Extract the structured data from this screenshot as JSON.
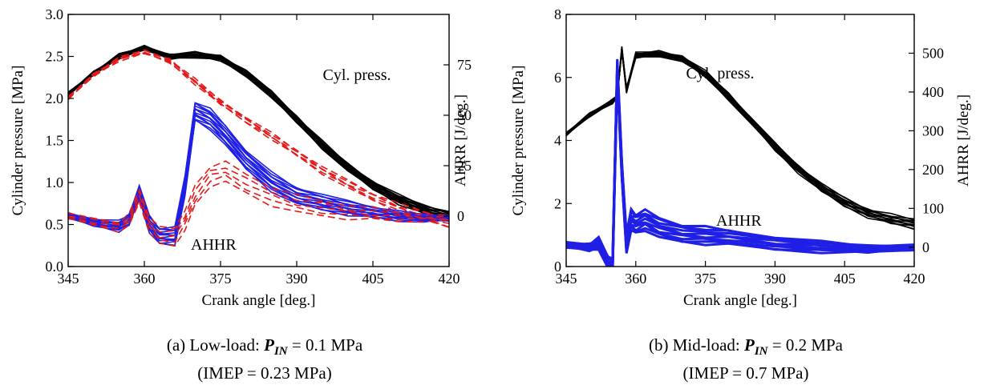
{
  "charts": [
    {
      "id": "a",
      "caption": {
        "line1_prefix": "(a) Low-load: ",
        "pin_symbol": "P",
        "pin_sub": "IN",
        "line1_suffix": " = 0.1 MPa",
        "line2": "(IMEP = 0.23 MPa)"
      },
      "ylabel_left": "Cylinder pressure [MPa]",
      "ylabel_right": "AHRR [J/deg.]",
      "xlabel": "Crank angle [deg.]",
      "annotations": {
        "pressure": "Cyl. press.",
        "ahrr": "AHHR"
      },
      "colors": {
        "black": "#000000",
        "blue": "#1f1fe6",
        "red": "#e41a1a"
      }
    },
    {
      "id": "b",
      "caption": {
        "line1_prefix": "(b) Mid-load: ",
        "pin_symbol": "P",
        "pin_sub": "IN",
        "line1_suffix": " = 0.2 MPa",
        "line2": "(IMEP = 0.7 MPa)"
      },
      "ylabel_left": "Cylinder pressure [MPa]",
      "ylabel_right": "AHRR [J/deg.]",
      "xlabel": "Crank angle [deg.]",
      "annotations": {
        "pressure": "Cyl. press.",
        "ahrr": "AHHR"
      },
      "colors": {
        "black": "#000000",
        "blue": "#1f1fe6"
      }
    }
  ],
  "chart_data": [
    {
      "type": "line",
      "xlim": [
        345,
        420
      ],
      "ylim_left": [
        0.0,
        3.0
      ],
      "ylim_right": [
        -25,
        100
      ],
      "x_ticks": [
        345,
        360,
        375,
        390,
        405,
        420
      ],
      "y_ticks_left": [
        "0.0",
        "0.5",
        "1.0",
        "1.5",
        "2.0",
        "2.5",
        "3.0"
      ],
      "y_ticks_right": [
        0,
        25,
        50,
        75
      ],
      "series": [
        {
          "axis": "left",
          "color": "black",
          "dash": false,
          "count": 14,
          "x": [
            345,
            350,
            355,
            360,
            365,
            370,
            375,
            380,
            385,
            390,
            395,
            400,
            405,
            410,
            415,
            420
          ],
          "y": [
            2.05,
            2.3,
            2.5,
            2.6,
            2.5,
            2.52,
            2.48,
            2.3,
            2.05,
            1.75,
            1.45,
            1.18,
            0.97,
            0.8,
            0.68,
            0.6
          ]
        },
        {
          "axis": "left",
          "color": "red",
          "dash": true,
          "count": 6,
          "x": [
            345,
            350,
            355,
            360,
            365,
            370,
            375,
            380,
            385,
            390,
            395,
            400,
            405,
            410,
            415,
            420
          ],
          "y": [
            2.0,
            2.28,
            2.47,
            2.55,
            2.45,
            2.2,
            1.95,
            1.75,
            1.55,
            1.35,
            1.15,
            0.98,
            0.83,
            0.7,
            0.6,
            0.52
          ]
        },
        {
          "axis": "right",
          "color": "blue",
          "dash": false,
          "count": 14,
          "x": [
            345,
            350,
            355,
            357,
            359,
            361,
            363,
            366,
            368,
            370,
            373,
            376,
            380,
            385,
            390,
            395,
            400,
            405,
            410,
            415,
            420
          ],
          "y": [
            0,
            -3,
            -5,
            -2,
            12,
            -4,
            -10,
            -10,
            15,
            52,
            48,
            40,
            28,
            17,
            10,
            7,
            4,
            2,
            0,
            -1,
            -1
          ]
        },
        {
          "axis": "right",
          "color": "red",
          "dash": true,
          "count": 5,
          "x": [
            345,
            350,
            355,
            357,
            359,
            361,
            363,
            366,
            368,
            370,
            373,
            376,
            380,
            385,
            390,
            395,
            400,
            405,
            410,
            415,
            420
          ],
          "y": [
            0,
            -3,
            -5,
            -2,
            10,
            -4,
            -10,
            -10,
            -2,
            10,
            20,
            22,
            16,
            10,
            6,
            4,
            2,
            1,
            0,
            -1,
            -1
          ]
        }
      ]
    },
    {
      "type": "line",
      "xlim": [
        345,
        420
      ],
      "ylim_left": [
        0,
        8
      ],
      "ylim_right": [
        -50,
        600
      ],
      "x_ticks": [
        345,
        360,
        375,
        390,
        405,
        420
      ],
      "y_ticks_left": [
        "0",
        "2",
        "4",
        "6",
        "8"
      ],
      "y_ticks_right": [
        0,
        100,
        200,
        300,
        400,
        500
      ],
      "series": [
        {
          "axis": "left",
          "color": "black",
          "dash": false,
          "count": 12,
          "x": [
            345,
            350,
            355,
            356,
            357,
            358,
            360,
            365,
            370,
            375,
            380,
            385,
            390,
            395,
            400,
            405,
            410,
            415,
            420
          ],
          "y": [
            4.2,
            4.8,
            5.25,
            5.4,
            6.9,
            5.6,
            6.7,
            6.75,
            6.6,
            6.1,
            5.4,
            4.6,
            3.8,
            3.1,
            2.5,
            2.05,
            1.7,
            1.5,
            1.35
          ]
        },
        {
          "axis": "right",
          "color": "blue",
          "dash": false,
          "count": 10,
          "x": [
            345,
            350,
            352,
            354,
            355,
            356,
            357,
            358,
            359,
            360,
            362,
            365,
            370,
            375,
            380,
            390,
            400,
            410,
            420
          ],
          "y": [
            5,
            0,
            10,
            -40,
            -45,
            460,
            200,
            10,
            70,
            60,
            70,
            50,
            35,
            30,
            25,
            10,
            0,
            -5,
            0
          ]
        }
      ]
    }
  ]
}
